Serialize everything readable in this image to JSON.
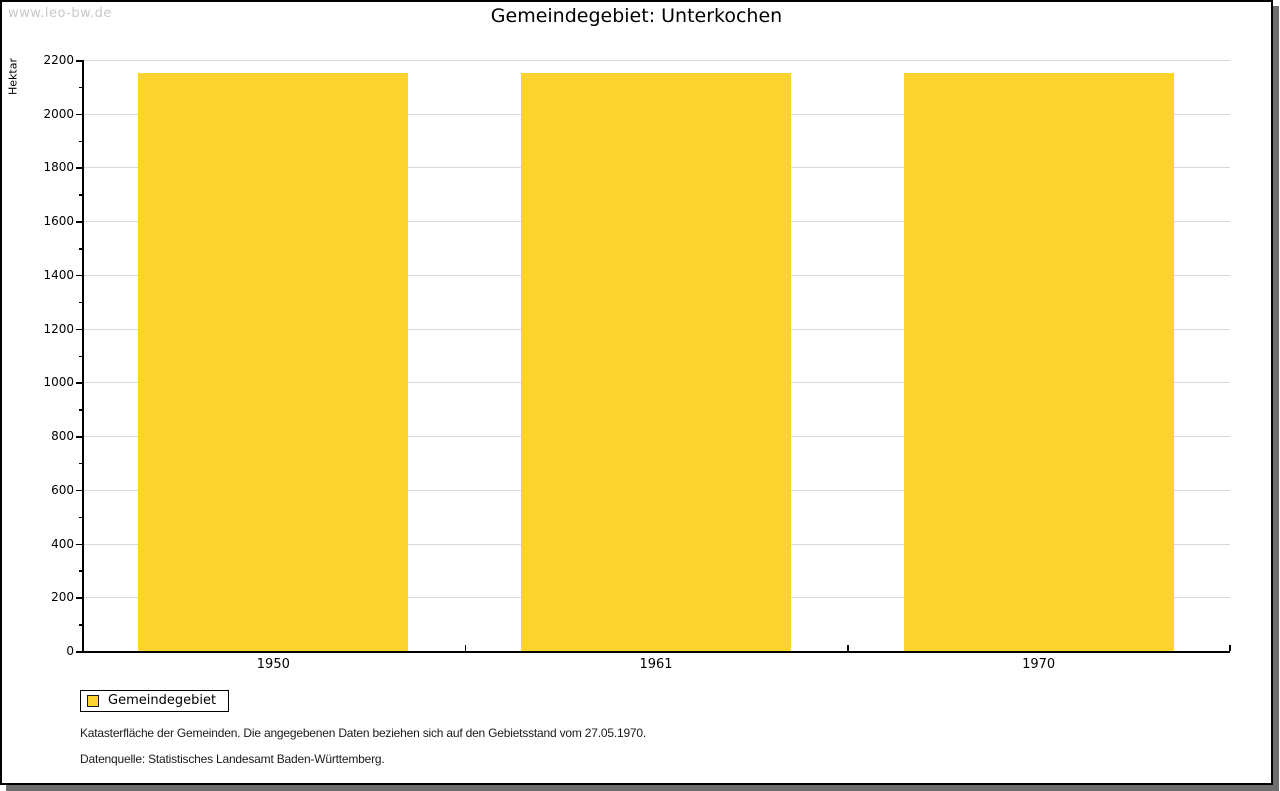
{
  "watermark": "www.leo-bw.de",
  "title": "Gemeindegebiet: Unterkochen",
  "y_axis_label": "Hektar",
  "legend": {
    "label": "Gemeindegebiet"
  },
  "footnotes": [
    "Katasterfläche der Gemeinden. Die angegebenen Daten beziehen sich auf den Gebietsstand vom 27.05.1970.",
    "Datenquelle: Statistisches Landesamt Baden-Württemberg."
  ],
  "colors": {
    "bar": "#FCD42D",
    "grid": "#D9D9D9",
    "axis": "#000000",
    "watermark": "#C9C9C9",
    "shadow": "#6E6E6E"
  },
  "chart_data": {
    "type": "bar",
    "title": "Gemeindegebiet: Unterkochen",
    "categories": [
      "1950",
      "1961",
      "1970"
    ],
    "series": [
      {
        "name": "Gemeindegebiet",
        "values": [
          2150,
          2150,
          2150
        ]
      }
    ],
    "xlabel": "",
    "ylabel": "Hektar",
    "ylim": [
      0,
      2200
    ],
    "ytick_step": 200,
    "minor_tick_step": 100,
    "grid": true,
    "bar_color": "#FCD42D",
    "legend_position": "bottom-left"
  }
}
